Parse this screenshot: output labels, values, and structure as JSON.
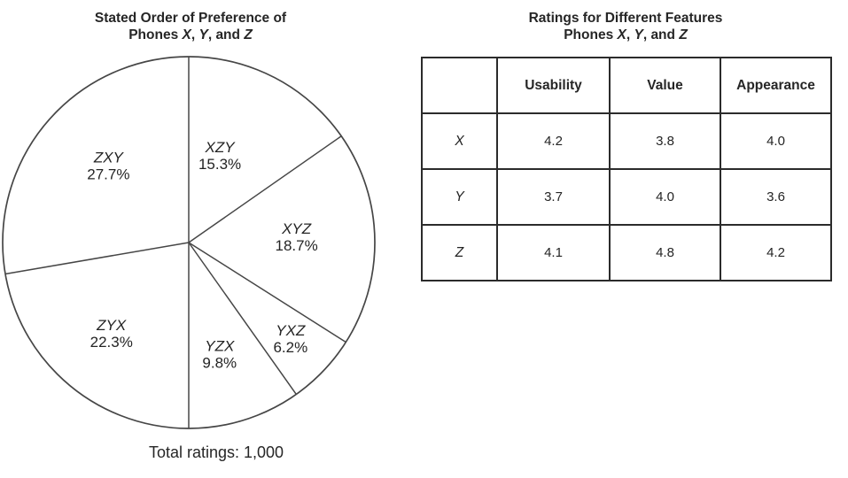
{
  "page": {
    "background": "#ffffff",
    "text_color": "#242424",
    "pie_stroke_color": "#464646",
    "table_border_color": "#2b2b2b"
  },
  "pie_panel": {
    "title_line1": "Stated Order of Preference of",
    "title_line2_parts": [
      "Phones ",
      "X",
      ", ",
      "Y",
      ", and ",
      "Z"
    ],
    "caption": "Total ratings: 1,000"
  },
  "table_panel": {
    "title_line1": "Ratings for Different Features",
    "title_line2_parts": [
      "Phones ",
      "X",
      ", ",
      "Y",
      ", and ",
      "Z"
    ],
    "columns": [
      "Usability",
      "Value",
      "Appearance"
    ],
    "rows": [
      {
        "label": "X",
        "values": [
          "4.2",
          "3.8",
          "4.0"
        ]
      },
      {
        "label": "Y",
        "values": [
          "3.7",
          "4.0",
          "3.6"
        ]
      },
      {
        "label": "Z",
        "values": [
          "4.1",
          "4.8",
          "4.2"
        ]
      }
    ]
  },
  "chart_data": [
    {
      "type": "pie",
      "title": "Stated Order of Preference of Phones X, Y, and Z",
      "labels": [
        "XZY",
        "XYZ",
        "YXZ",
        "YZX",
        "ZYX",
        "ZXY"
      ],
      "values_percent": [
        15.3,
        18.7,
        6.2,
        9.8,
        22.3,
        27.7
      ],
      "annotation": "Total ratings: 1,000",
      "total_ratings": 1000,
      "start_angle_deg": 0,
      "direction": "clockwise",
      "slice_fill": "#ffffff",
      "slice_stroke": "#464646",
      "legend_position": "none",
      "label_angles_deg": [
        19.5,
        86.7,
        133.2,
        164.5,
        220.5,
        314.0
      ],
      "label_radius_factors": [
        0.5,
        0.58,
        0.75,
        0.62,
        0.64,
        0.6
      ]
    },
    {
      "type": "table",
      "title": "Ratings for Different Features Phones X, Y, and Z",
      "columns": [
        "Usability",
        "Value",
        "Appearance"
      ],
      "rows": [
        [
          "X",
          4.2,
          3.8,
          4.0
        ],
        [
          "Y",
          3.7,
          4.0,
          3.6
        ],
        [
          "Z",
          4.1,
          4.8,
          4.2
        ]
      ]
    }
  ]
}
